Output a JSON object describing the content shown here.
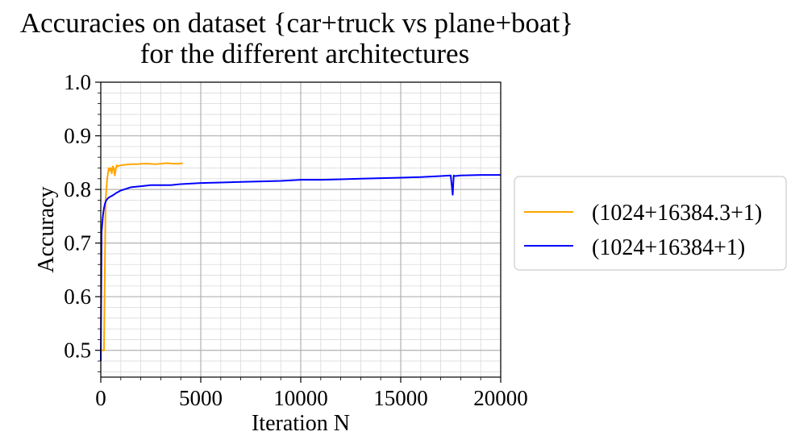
{
  "chart_data": {
    "type": "line",
    "title_line1": "Accuracies on dataset {car+truck vs plane+boat}",
    "title_line2": "for the different architectures",
    "xlabel": "Iteration N",
    "ylabel": "Accuracy",
    "xlim": [
      0,
      20000
    ],
    "ylim": [
      0.45,
      1.0
    ],
    "x_ticks": [
      0,
      5000,
      10000,
      15000,
      20000
    ],
    "x_tick_labels": [
      "0",
      "5000",
      "10000",
      "15000",
      "20000"
    ],
    "y_ticks": [
      0.5,
      0.6,
      0.7,
      0.8,
      0.9,
      1.0
    ],
    "y_tick_labels": [
      "0.5",
      "0.6",
      "0.7",
      "0.8",
      "0.9",
      "1.0"
    ],
    "grid": "major and minor",
    "legend_position": "outside right",
    "series": [
      {
        "name": "(1024+16384.3+1)",
        "color": "#ffa500",
        "x": [
          0,
          80,
          160,
          200,
          240,
          280,
          320,
          360,
          400,
          450,
          500,
          550,
          600,
          650,
          700,
          750,
          800,
          850,
          900,
          1000,
          1200,
          1500,
          1800,
          2100,
          2400,
          2700,
          3000,
          3300,
          3600,
          3900,
          4100
        ],
        "y": [
          0.5,
          0.5,
          0.5,
          0.64,
          0.78,
          0.8,
          0.82,
          0.83,
          0.84,
          0.835,
          0.84,
          0.83,
          0.843,
          0.84,
          0.826,
          0.838,
          0.845,
          0.843,
          0.844,
          0.845,
          0.846,
          0.847,
          0.847,
          0.848,
          0.848,
          0.847,
          0.848,
          0.849,
          0.848,
          0.848,
          0.849
        ]
      },
      {
        "name": "(1024+16384+1)",
        "color": "#0000ff",
        "x": [
          0,
          40,
          80,
          120,
          160,
          200,
          250,
          300,
          400,
          600,
          800,
          1000,
          1500,
          2000,
          2500,
          3000,
          3500,
          4000,
          5000,
          6000,
          7000,
          8000,
          9000,
          10000,
          11000,
          12000,
          13000,
          14000,
          15000,
          16000,
          17000,
          17500,
          17600,
          17650,
          17700,
          18000,
          19000,
          20000
        ],
        "y": [
          0.48,
          0.72,
          0.74,
          0.755,
          0.765,
          0.772,
          0.778,
          0.781,
          0.785,
          0.789,
          0.794,
          0.798,
          0.804,
          0.806,
          0.808,
          0.808,
          0.808,
          0.81,
          0.812,
          0.813,
          0.814,
          0.815,
          0.816,
          0.818,
          0.818,
          0.819,
          0.82,
          0.821,
          0.822,
          0.823,
          0.825,
          0.826,
          0.79,
          0.826,
          0.825,
          0.826,
          0.827,
          0.827
        ]
      }
    ]
  }
}
